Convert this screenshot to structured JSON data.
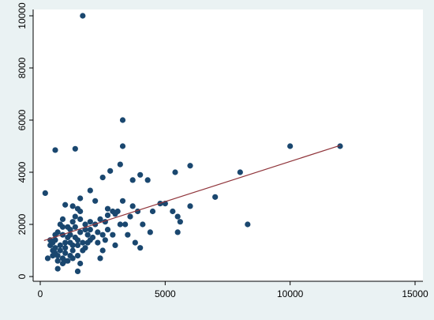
{
  "colors": {
    "background": "#eaf2f3",
    "plot_background": "#ffffff",
    "point": "#1a476f",
    "fit_line": "#90353b",
    "axis": "#000000"
  },
  "chart_data": {
    "type": "scatter",
    "title": "",
    "xlabel": "",
    "ylabel": "",
    "xlim": [
      0,
      15000
    ],
    "ylim": [
      0,
      10000
    ],
    "x_ticks": [
      0,
      5000,
      10000,
      15000
    ],
    "y_ticks": [
      0,
      2000,
      4000,
      6000,
      8000,
      10000
    ],
    "x_tick_labels": [
      "0",
      "5000",
      "10000",
      "15000"
    ],
    "y_tick_labels": [
      "0",
      "2000",
      "4000",
      "6000",
      "8000",
      "10000"
    ],
    "grid": false,
    "legend": "none",
    "fit_line": {
      "x": [
        150,
        12000
      ],
      "y": [
        1380,
        5030
      ]
    },
    "series": [
      {
        "values": [
          [
            1700,
            10000
          ],
          [
            3300,
            6000
          ],
          [
            600,
            4850
          ],
          [
            1400,
            4900
          ],
          [
            3300,
            5000
          ],
          [
            10000,
            5000
          ],
          [
            12000,
            5000
          ],
          [
            200,
            3200
          ],
          [
            3200,
            4300
          ],
          [
            6000,
            4250
          ],
          [
            5400,
            4000
          ],
          [
            8000,
            4000
          ],
          [
            4000,
            3900
          ],
          [
            2800,
            4050
          ],
          [
            2500,
            3800
          ],
          [
            3700,
            3700
          ],
          [
            4300,
            3700
          ],
          [
            2000,
            3300
          ],
          [
            1600,
            3000
          ],
          [
            7000,
            3050
          ],
          [
            2200,
            2900
          ],
          [
            1000,
            2750
          ],
          [
            1300,
            2700
          ],
          [
            1500,
            2600
          ],
          [
            1600,
            2500
          ],
          [
            2700,
            2350
          ],
          [
            2900,
            2500
          ],
          [
            3000,
            2400
          ],
          [
            3300,
            2900
          ],
          [
            3600,
            2300
          ],
          [
            3900,
            2500
          ],
          [
            4500,
            2500
          ],
          [
            4800,
            2800
          ],
          [
            5000,
            2800
          ],
          [
            5300,
            2500
          ],
          [
            5500,
            2300
          ],
          [
            5600,
            2100
          ],
          [
            6000,
            2700
          ],
          [
            8300,
            2000
          ],
          [
            5500,
            1700
          ],
          [
            4400,
            1700
          ],
          [
            3200,
            2000
          ],
          [
            3500,
            1600
          ],
          [
            3800,
            1300
          ],
          [
            4000,
            1100
          ],
          [
            2900,
            1600
          ],
          [
            2600,
            1400
          ],
          [
            2300,
            1300
          ],
          [
            2000,
            1400
          ],
          [
            1800,
            1100
          ],
          [
            1500,
            1200
          ],
          [
            1300,
            1000
          ],
          [
            1200,
            800
          ],
          [
            1000,
            900
          ],
          [
            900,
            700
          ],
          [
            700,
            800
          ],
          [
            600,
            900
          ],
          [
            500,
            1000
          ],
          [
            400,
            1200
          ],
          [
            300,
            700
          ],
          [
            700,
            300
          ],
          [
            1500,
            200
          ],
          [
            1600,
            500
          ],
          [
            1000,
            1300
          ],
          [
            1100,
            1500
          ],
          [
            1200,
            1800
          ],
          [
            900,
            1900
          ],
          [
            800,
            2000
          ],
          [
            700,
            1700
          ],
          [
            600,
            1400
          ],
          [
            500,
            1300
          ],
          [
            400,
            1400
          ],
          [
            800,
            1200
          ],
          [
            900,
            1600
          ],
          [
            1100,
            1900
          ],
          [
            1300,
            2100
          ],
          [
            1400,
            2300
          ],
          [
            1600,
            2200
          ],
          [
            1800,
            2000
          ],
          [
            2000,
            1800
          ],
          [
            2200,
            2000
          ],
          [
            2400,
            2200
          ],
          [
            2600,
            2100
          ],
          [
            2700,
            1800
          ],
          [
            2500,
            1600
          ],
          [
            2300,
            1700
          ],
          [
            2100,
            1500
          ],
          [
            1900,
            1300
          ],
          [
            1700,
            1000
          ],
          [
            1500,
            800
          ],
          [
            1300,
            700
          ],
          [
            1100,
            600
          ],
          [
            900,
            500
          ],
          [
            700,
            600
          ],
          [
            800,
            1000
          ],
          [
            1000,
            1100
          ],
          [
            1200,
            1300
          ],
          [
            1400,
            1500
          ],
          [
            1600,
            1700
          ],
          [
            1800,
            1800
          ],
          [
            2000,
            2100
          ],
          [
            1700,
            1300
          ],
          [
            1500,
            1400
          ],
          [
            1300,
            1200
          ],
          [
            600,
            1100
          ],
          [
            500,
            800
          ],
          [
            1400,
            1900
          ],
          [
            1200,
            1600
          ],
          [
            1900,
            1600
          ],
          [
            2500,
            1000
          ],
          [
            3000,
            1200
          ],
          [
            2700,
            2600
          ],
          [
            3100,
            2500
          ],
          [
            900,
            2200
          ],
          [
            600,
            1600
          ],
          [
            3400,
            2000
          ],
          [
            4100,
            2000
          ],
          [
            1000,
            600
          ],
          [
            2400,
            700
          ],
          [
            3700,
            2700
          ]
        ]
      }
    ]
  }
}
